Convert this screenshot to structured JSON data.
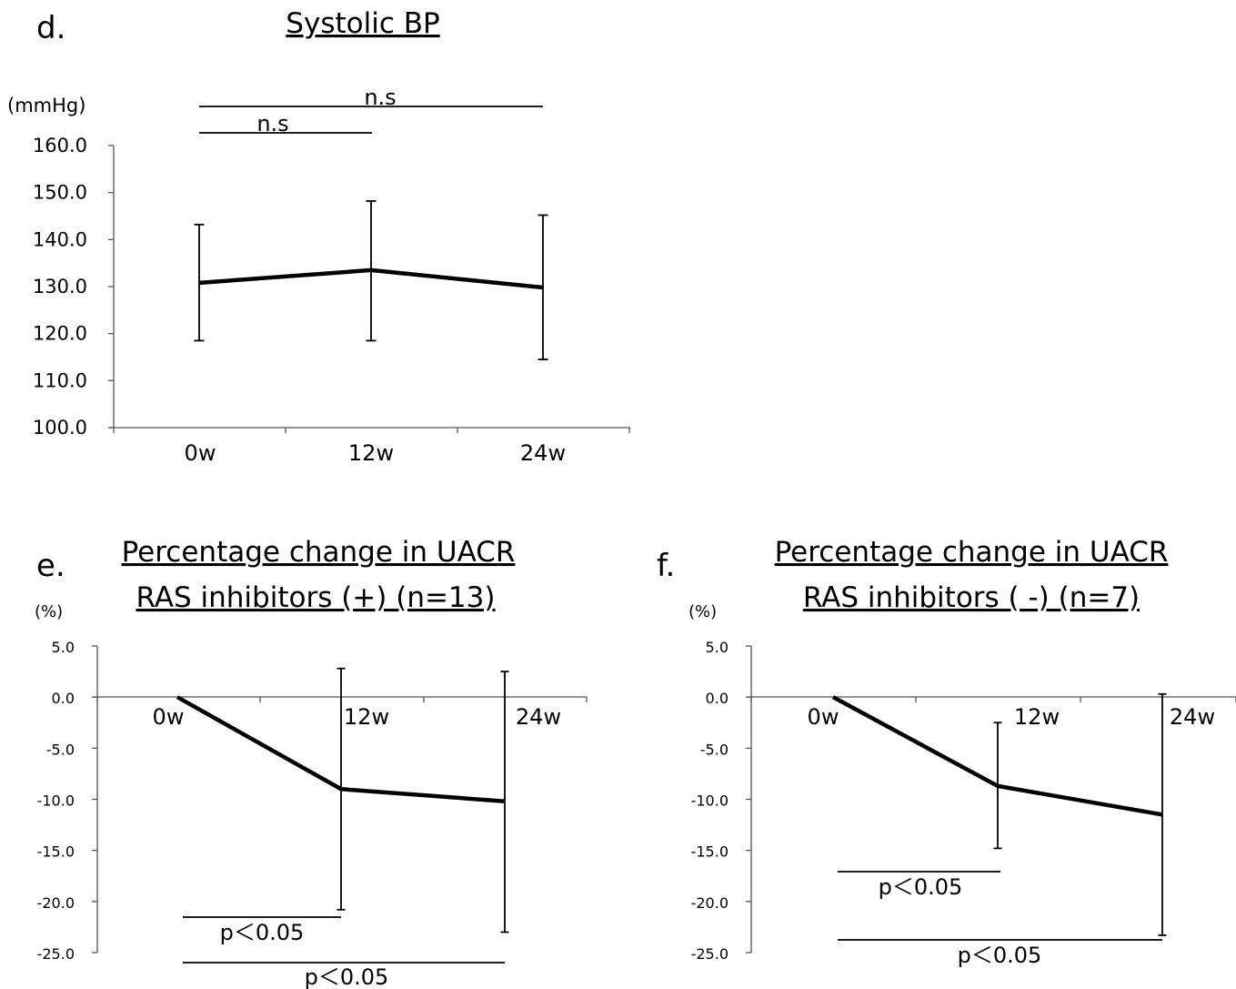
{
  "chart_data": [
    {
      "panel": "d.",
      "type": "line",
      "title": "Systolic BP",
      "ylabel": "(mmHg)",
      "categories": [
        "0w",
        "12w",
        "24w"
      ],
      "y_ticks": [
        "160.0",
        "150.0",
        "140.0",
        "130.0",
        "120.0",
        "110.0",
        "100.0"
      ],
      "ylim": [
        100,
        160
      ],
      "series": [
        {
          "values": [
            130.8,
            133.5,
            129.8
          ],
          "error_low": [
            118.5,
            118.5,
            114.5
          ],
          "error_high": [
            143.2,
            148.2,
            145.2
          ]
        }
      ],
      "annotations": [
        {
          "text": "n.s",
          "from": "0w",
          "to": "24w",
          "level": 1
        },
        {
          "text": "n.s",
          "from": "0w",
          "to": "12w",
          "level": 2
        }
      ]
    },
    {
      "panel": "e.",
      "type": "line",
      "title": [
        "Percentage change in UACR",
        "RAS inhibitors (+) (n=13)"
      ],
      "ylabel": "(%)",
      "categories": [
        "0w",
        "12w",
        "24w"
      ],
      "y_ticks": [
        "5.0",
        "0.0",
        "-5.0",
        "-10.0",
        "-15.0",
        "-20.0",
        "-25.0"
      ],
      "ylim": [
        -25,
        5
      ],
      "series": [
        {
          "values": [
            0,
            -9.0,
            -10.2
          ],
          "error_low": [
            null,
            -20.8,
            -23.0
          ],
          "error_high": [
            null,
            2.8,
            2.5
          ]
        }
      ],
      "annotations": [
        {
          "text": "p＜0.05",
          "from": "0w",
          "to": "12w",
          "level": 1
        },
        {
          "text": "p＜0.05",
          "from": "0w",
          "to": "24w",
          "level": 2
        }
      ]
    },
    {
      "panel": "f.",
      "type": "line",
      "title": [
        "Percentage change in UACR",
        "RAS inhibitors ( -) (n=7)"
      ],
      "ylabel": "(%)",
      "categories": [
        "0w",
        "12w",
        "24w"
      ],
      "y_ticks": [
        "5.0",
        "0.0",
        "-5.0",
        "-10.0",
        "-15.0",
        "-20.0",
        "-25.0"
      ],
      "ylim": [
        -25,
        5
      ],
      "series": [
        {
          "values": [
            0,
            -8.7,
            -11.5
          ],
          "error_low": [
            null,
            -14.8,
            -23.3
          ],
          "error_high": [
            null,
            -2.5,
            0.3
          ]
        }
      ],
      "annotations": [
        {
          "text": "p＜0.05",
          "from": "0w",
          "to": "12w",
          "level": 1
        },
        {
          "text": "p＜0.05",
          "from": "0w",
          "to": "24w",
          "level": 2
        }
      ]
    }
  ]
}
